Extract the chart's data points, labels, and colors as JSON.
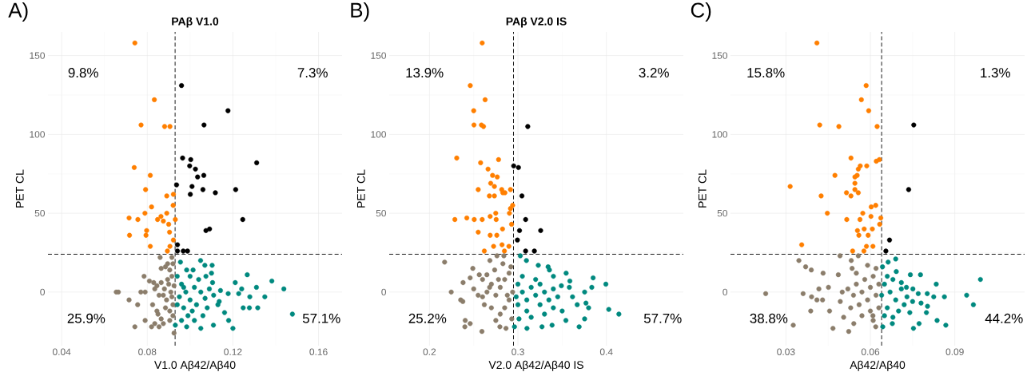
{
  "chart_data": [
    {
      "type": "scatter",
      "title": "PAβ V1.0",
      "xlabel": "V1.0 Aβ42/Aβ40",
      "ylabel": "PET CL",
      "annotations": [
        "A)",
        "9.8%",
        "7.3%",
        "25.9%",
        "57.1%"
      ],
      "xlim": [
        0.0336,
        0.171
      ],
      "ylim": [
        -34,
        165
      ],
      "xticks": [
        0.04,
        0.08,
        0.12,
        0.16
      ],
      "yticks": [
        0,
        50,
        100,
        150
      ],
      "grid": true,
      "marker": "circle",
      "ref_lines": [
        {
          "axis": "x",
          "value": 0.093,
          "color": "#000000",
          "line_style": "dashed"
        },
        {
          "axis": "y",
          "value": 24,
          "color": "#000000",
          "line_style": "dashed"
        }
      ],
      "series": [
        {
          "color": "#ff7f00",
          "x": [
            0.0742,
            0.0833,
            0.0771,
            0.0881,
            0.0906,
            0.0739,
            0.0814,
            0.0792,
            0.0891,
            0.0922,
            0.082,
            0.0921,
            0.0789,
            0.0891,
            0.0715,
            0.0756,
            0.0864,
            0.0848,
            0.0875,
            0.0931,
            0.09,
            0.0797,
            0.0904,
            0.0717,
            0.0794,
            0.0922,
            0.0814,
            0.0906,
            0.0894
          ],
          "values": [
            158,
            122,
            106,
            105,
            105,
            79,
            74,
            65,
            61,
            62,
            54,
            55,
            50,
            50,
            47,
            46,
            48,
            46,
            45,
            46,
            43,
            39,
            38,
            36,
            36,
            33,
            29,
            29,
            26
          ]
        },
        {
          "color": "#000000",
          "x": [
            0.096,
            0.1177,
            0.1065,
            0.0965,
            0.1003,
            0.0998,
            0.1025,
            0.1035,
            0.1064,
            0.0937,
            0.1009,
            0.106,
            0.1213,
            0.1001,
            0.1118,
            0.1311,
            0.1246,
            0.1074,
            0.1091,
            0.0941,
            0.0941,
            0.0968,
            0.0988
          ],
          "values": [
            131,
            115,
            106,
            85,
            84,
            80,
            78,
            73,
            74,
            68,
            67,
            65,
            65,
            62,
            63,
            82,
            46,
            39,
            40,
            30,
            26,
            26,
            26
          ]
        },
        {
          "color": "#8b7d6b",
          "x": [
            0.0655,
            0.0665,
            0.0715,
            0.0755,
            0.0742,
            0.077,
            0.079,
            0.079,
            0.082,
            0.0835,
            0.0855,
            0.0785,
            0.081,
            0.083,
            0.0845,
            0.0865,
            0.0835,
            0.0855,
            0.0825,
            0.085,
            0.0865,
            0.0875,
            0.0845,
            0.0885,
            0.089,
            0.0875,
            0.088,
            0.09,
            0.0865,
            0.0885,
            0.0905,
            0.0915,
            0.0895,
            0.086,
            0.0915,
            0.0925,
            0.092,
            0.0905,
            0.092,
            0.091,
            0.0925,
            0.0915,
            0.0895,
            0.0905,
            0.092
          ],
          "values": [
            0,
            0,
            -5,
            -8,
            -22,
            0,
            0,
            -18,
            -22,
            -20,
            -22,
            10,
            7,
            6,
            4,
            6,
            2,
            -2,
            -8,
            -14,
            -17,
            -20,
            -12,
            -10,
            -5,
            -2,
            2,
            5,
            15,
            16,
            14,
            10,
            18,
            22,
            22,
            -26,
            -15,
            -18,
            -8,
            0,
            4,
            -3,
            8,
            -12,
            18
          ]
        },
        {
          "color": "#00897f",
          "x": [
            0.1438,
            0.1382,
            0.1267,
            0.131,
            0.1349,
            0.1279,
            0.1316,
            0.1248,
            0.1277,
            0.1478,
            0.12,
            0.118,
            0.1211,
            0.1241,
            0.1227,
            0.1178,
            0.1142,
            0.1136,
            0.1161,
            0.1109,
            0.105,
            0.0984,
            0.0931,
            0.1049,
            0.1069,
            0.1103,
            0.11,
            0.0955,
            0.0984,
            0.1014,
            0.1105,
            0.1074,
            0.096,
            0.098,
            0.1,
            0.102,
            0.097,
            0.099,
            0.101,
            0.103,
            0.105,
            0.107,
            0.104,
            0.095,
            0.094,
            0.096,
            0.108,
            0.106,
            0.1,
            0.102,
            0.109,
            0.111,
            0.113,
            0.097,
            0.094
          ],
          "values": [
            2,
            7,
            11,
            3,
            -3,
            -3,
            -10,
            -10,
            -10,
            -14,
            -23,
            -18,
            6,
            2,
            -1,
            -1,
            1,
            -6,
            -13,
            -21,
            -23,
            -22,
            -21,
            20,
            17,
            17,
            12,
            19,
            14,
            14,
            6,
            10,
            5,
            0,
            -5,
            3,
            -10,
            -15,
            -12,
            -8,
            0,
            -4,
            8,
            -3,
            10,
            -18,
            -10,
            -15,
            10,
            -18,
            2,
            -2,
            -8,
            3,
            -8
          ]
        }
      ]
    },
    {
      "type": "scatter",
      "title": "PAβ V2.0 IS",
      "xlabel": "V2.0 Aβ42/Aβ40 IS",
      "ylabel": "PET CL",
      "annotations": [
        "B)",
        "13.9%",
        "3.2%",
        "25.2%",
        "57.7%"
      ],
      "xlim": [
        0.1545,
        0.487
      ],
      "ylim": [
        -34,
        165
      ],
      "xticks": [
        0.2,
        0.3,
        0.4
      ],
      "yticks": [
        0,
        50,
        100,
        150
      ],
      "grid": true,
      "marker": "circle",
      "ref_lines": [
        {
          "axis": "x",
          "value": 0.295,
          "color": "#000000",
          "line_style": "dashed"
        },
        {
          "axis": "y",
          "value": 24,
          "color": "#000000",
          "line_style": "dashed"
        }
      ],
      "series": [
        {
          "color": "#ff7f00",
          "x": [
            0.2596,
            0.2461,
            0.2629,
            0.25,
            0.2503,
            0.2587,
            0.2611,
            0.2308,
            0.2578,
            0.2781,
            0.2662,
            0.2713,
            0.2766,
            0.2692,
            0.2734,
            0.2551,
            0.2817,
            0.2916,
            0.2829,
            0.2853,
            0.2677,
            0.2734,
            0.294,
            0.2916,
            0.2749,
            0.2904,
            0.2287,
            0.2422,
            0.2506,
            0.2596,
            0.2686,
            0.2754,
            0.2928,
            0.2826,
            0.2551,
            0.2686,
            0.2761,
            0.282,
            0.2725,
            0.2898,
            0.262,
            0.2847
          ],
          "values": [
            158,
            131,
            122,
            115,
            106,
            106,
            105,
            85,
            82,
            84,
            78,
            74,
            73,
            69,
            67,
            65,
            65,
            65,
            63,
            63,
            61,
            61,
            55,
            53,
            50,
            50,
            46,
            47,
            46,
            46,
            48,
            46,
            43,
            40,
            38,
            36,
            36,
            30,
            29,
            29,
            26,
            26
          ]
        },
        {
          "color": "#000000",
          "x": [
            0.3111,
            0.2952,
            0.3006,
            0.3045,
            0.3087,
            0.3018,
            0.3257,
            0.2994,
            0.3087,
            0.3186
          ],
          "values": [
            105,
            80,
            79,
            61,
            46,
            39,
            39,
            33,
            26,
            26
          ]
        },
        {
          "color": "#8b7d6b",
          "x": [
            0.2171,
            0.2246,
            0.2353,
            0.2377,
            0.2404,
            0.246,
            0.24,
            0.2593,
            0.2796,
            0.2865,
            0.238,
            0.246,
            0.249,
            0.2563,
            0.2649,
            0.2683,
            0.2763,
            0.2841,
            0.2737,
            0.27,
            0.265,
            0.26,
            0.275,
            0.28,
            0.285,
            0.29,
            0.29,
            0.285,
            0.28,
            0.27,
            0.262,
            0.255,
            0.25,
            0.275,
            0.293,
            0.294,
            0.288,
            0.278,
            0.268,
            0.292,
            0.283,
            0.26
          ],
          "values": [
            19,
            0,
            -5,
            -6,
            -18,
            -20,
            -22,
            -25,
            -22,
            -23,
            6,
            9,
            15,
            11,
            11,
            20,
            23,
            23,
            14,
            5,
            0,
            -3,
            -2,
            3,
            8,
            12,
            -5,
            -10,
            -14,
            -10,
            -8,
            -2,
            2,
            -18,
            -17,
            0,
            -2,
            8,
            3,
            16,
            18,
            8
          ]
        },
        {
          "color": "#00897f",
          "x": [
            0.3027,
            0.3096,
            0.323,
            0.3341,
            0.3356,
            0.3401,
            0.3545,
            0.3587,
            0.385,
            0.3994,
            0.3835,
            0.3754,
            0.3769,
            0.3799,
            0.4027,
            0.4141,
            0.3754,
            0.3692,
            0.3542,
            0.3386,
            0.3272,
            0.3102,
            0.2961,
            0.3012,
            0.3617,
            0.3581,
            0.3491,
            0.367,
            0.3,
            0.305,
            0.31,
            0.315,
            0.32,
            0.325,
            0.33,
            0.335,
            0.34,
            0.345,
            0.31,
            0.3,
            0.32,
            0.33,
            0.315,
            0.35,
            0.305,
            0.34,
            0.325,
            0.298
          ],
          "values": [
            23,
            20,
            17,
            16,
            14,
            10,
            12,
            7,
            9,
            5,
            3,
            0,
            -7,
            -10,
            -11,
            -14,
            -17,
            -22,
            -18,
            -21,
            -22,
            -23,
            -22,
            -17,
            -3,
            3,
            4,
            -8,
            5,
            0,
            -5,
            3,
            -2,
            -8,
            0,
            -5,
            -10,
            -3,
            -12,
            -8,
            8,
            -14,
            -16,
            -12,
            10,
            2,
            5,
            -3
          ]
        }
      ]
    },
    {
      "type": "scatter",
      "xlabel": "Aβ42/Aβ40",
      "ylabel": "PET CL",
      "annotations": [
        "C)",
        "15.8%",
        "1.3%",
        "38.8%",
        "44.2%"
      ],
      "xlim": [
        0.0103,
        0.1148
      ],
      "ylim": [
        -34,
        165
      ],
      "xticks": [
        0.03,
        0.06,
        0.09
      ],
      "yticks": [
        0,
        50,
        100,
        150
      ],
      "grid": true,
      "marker": "circle",
      "ref_lines": [
        {
          "axis": "x",
          "value": 0.064,
          "color": "#000000",
          "line_style": "dashed"
        },
        {
          "axis": "y",
          "value": 24,
          "color": "#000000",
          "line_style": "dashed"
        }
      ],
      "series": [
        {
          "color": "#ff7f00",
          "x": [
            0.041,
            0.0585,
            0.0568,
            0.0594,
            0.042,
            0.0488,
            0.0624,
            0.0531,
            0.0621,
            0.0632,
            0.0587,
            0.0564,
            0.0557,
            0.0474,
            0.0553,
            0.0545,
            0.0545,
            0.0315,
            0.0545,
            0.0515,
            0.0557,
            0.0531,
            0.0425,
            0.0603,
            0.0619,
            0.0447,
            0.0573,
            0.0516,
            0.0563,
            0.0602,
            0.0637,
            0.0633,
            0.0554,
            0.0578,
            0.0607,
            0.0559,
            0.0592,
            0.0356,
            0.0586,
            0.0609,
            0.0537,
            0.0577
          ],
          "values": [
            158,
            131,
            122,
            115,
            106,
            105,
            105,
            85,
            83,
            84,
            80,
            80,
            78,
            74,
            74,
            73,
            69,
            67,
            65,
            63,
            63,
            61,
            61,
            54,
            55,
            50,
            50,
            46,
            46,
            48,
            47,
            43,
            39,
            40,
            40,
            36,
            36,
            30,
            29,
            29,
            26,
            26
          ]
        },
        {
          "color": "#000000",
          "x": [
            0.0754,
            0.0736,
            0.0668,
            0.0655
          ],
          "values": [
            106,
            65,
            33,
            26
          ]
        },
        {
          "color": "#8b7d6b",
          "x": [
            0.0228,
            0.0326,
            0.0361,
            0.0388,
            0.0346,
            0.037,
            0.039,
            0.0432,
            0.0391,
            0.041,
            0.043,
            0.0417,
            0.0455,
            0.0467,
            0.0523,
            0.0493,
            0.0486,
            0.0451,
            0.0492,
            0.0532,
            0.0557,
            0.0535,
            0.0505,
            0.0541,
            0.0619,
            0.0609,
            0.055,
            0.057,
            0.059,
            0.06,
            0.062,
            0.058,
            0.056,
            0.054,
            0.052,
            0.061,
            0.063,
            0.063,
            0.06,
            0.057,
            0.053,
            0.062,
            0.059,
            0.05,
            0.055,
            0.061
          ],
          "values": [
            -1,
            -21,
            -1,
            -12,
            20,
            16,
            14,
            12,
            -3,
            -5,
            -5,
            2,
            -12,
            -23,
            -25,
            -6,
            11,
            3,
            23,
            20,
            23,
            15,
            -16,
            -20,
            -22,
            -15,
            5,
            0,
            -5,
            3,
            -2,
            8,
            -8,
            -2,
            2,
            10,
            5,
            -10,
            -12,
            -15,
            -10,
            15,
            17,
            0,
            12,
            -18
          ]
        },
        {
          "color": "#00897f",
          "x": [
            0.069,
            0.0663,
            0.0643,
            0.0692,
            0.0742,
            0.0778,
            0.0834,
            0.0991,
            0.0942,
            0.0966,
            0.0863,
            0.0825,
            0.0802,
            0.078,
            0.0803,
            0.0799,
            0.0837,
            0.0868,
            0.0773,
            0.0753,
            0.0678,
            0.0644,
            0.0751,
            0.0728,
            0.065,
            0.067,
            0.069,
            0.071,
            0.073,
            0.068,
            0.066,
            0.07,
            0.072,
            0.075,
            0.064,
            0.065,
            0.068,
            0.074,
            0.077,
            0.071,
            0.066
          ],
          "values": [
            21,
            19,
            16,
            13,
            11,
            11,
            5,
            8,
            -2,
            -8,
            -3,
            -3,
            -1,
            -7,
            -9,
            -13,
            -18,
            -21,
            -20,
            -23,
            -20,
            -22,
            2,
            3,
            5,
            0,
            -5,
            2,
            -3,
            8,
            -10,
            -12,
            -8,
            -6,
            -2,
            -15,
            -16,
            -13,
            -1,
            6,
            10
          ]
        }
      ]
    }
  ]
}
